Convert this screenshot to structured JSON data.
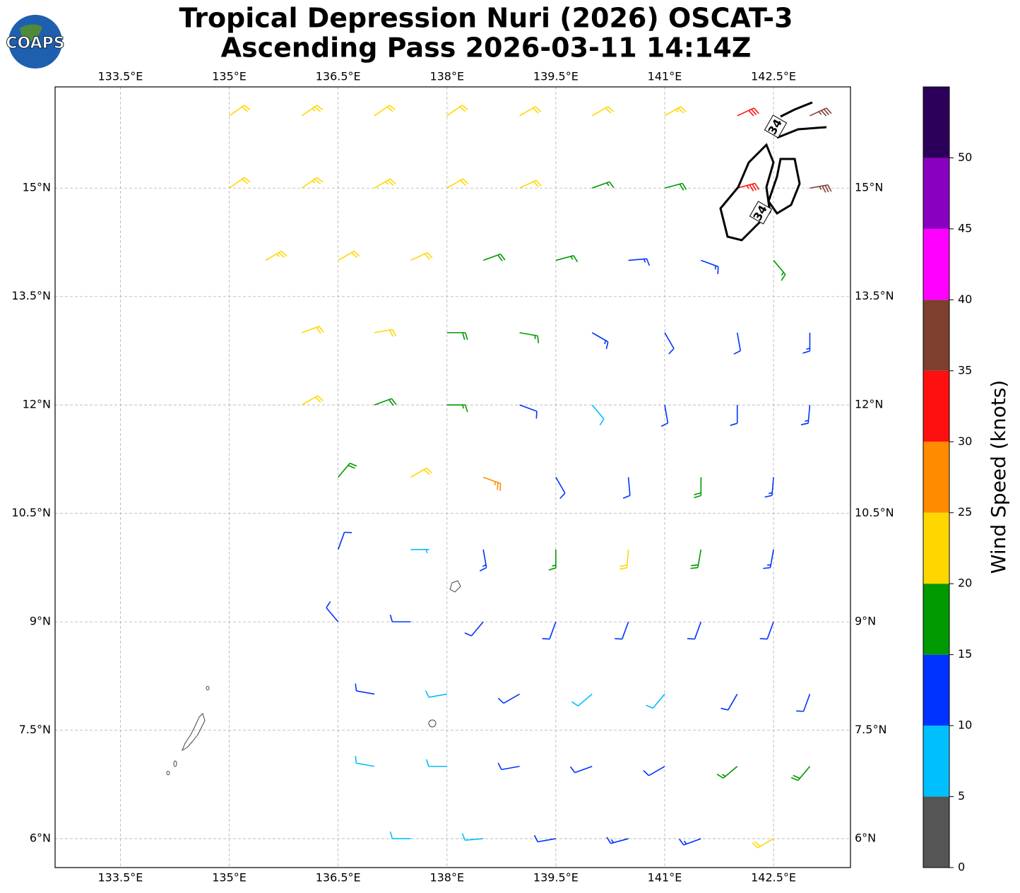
{
  "chart_data": {
    "type": "barbs",
    "title": "Tropical Depression Nuri (2026) OSCAT-3",
    "subtitle": "Ascending Pass 2026-03-11 14:14Z",
    "logo": "COAPS",
    "xlim": [
      132.6,
      143.56
    ],
    "ylim": [
      5.6,
      16.4
    ],
    "xticks": [
      {
        "value": 133.5,
        "label": "133.5°E"
      },
      {
        "value": 135,
        "label": "135°E"
      },
      {
        "value": 136.5,
        "label": "136.5°E"
      },
      {
        "value": 138,
        "label": "138°E"
      },
      {
        "value": 139.5,
        "label": "139.5°E"
      },
      {
        "value": 141,
        "label": "141°E"
      },
      {
        "value": 142.5,
        "label": "142.5°E"
      }
    ],
    "yticks": [
      {
        "value": 6,
        "label": "6°N"
      },
      {
        "value": 7.5,
        "label": "7.5°N"
      },
      {
        "value": 9,
        "label": "9°N"
      },
      {
        "value": 10.5,
        "label": "10.5°N"
      },
      {
        "value": 12,
        "label": "12°N"
      },
      {
        "value": 13.5,
        "label": "13.5°N"
      },
      {
        "value": 15,
        "label": "15°N"
      }
    ],
    "grid": true,
    "contour_label": "34",
    "colorbar": {
      "label": "Wind Speed (knots)",
      "lim": [
        0,
        55
      ],
      "ticks": [
        0,
        5,
        10,
        15,
        20,
        25,
        30,
        35,
        40,
        45,
        50
      ],
      "colors": [
        "#555555",
        "#00bfff",
        "#0033ff",
        "#009900",
        "#ffd700",
        "#ff8c00",
        "#ff1010",
        "#7f3f2f",
        "#ff00ff",
        "#8a00c0",
        "#2c005a"
      ]
    },
    "barbs": [
      {
        "lon": 135,
        "lat": 16,
        "speed": 22,
        "dir": 55
      },
      {
        "lon": 136,
        "lat": 16,
        "speed": 23,
        "dir": 55
      },
      {
        "lon": 137,
        "lat": 16,
        "speed": 22,
        "dir": 55
      },
      {
        "lon": 138,
        "lat": 16,
        "speed": 22,
        "dir": 55
      },
      {
        "lon": 139,
        "lat": 16,
        "speed": 21,
        "dir": 60
      },
      {
        "lon": 140,
        "lat": 16,
        "speed": 20,
        "dir": 60
      },
      {
        "lon": 141,
        "lat": 16,
        "speed": 24,
        "dir": 60
      },
      {
        "lon": 142,
        "lat": 16,
        "speed": 30,
        "dir": 65
      },
      {
        "lon": 143,
        "lat": 16,
        "speed": 36,
        "dir": 65
      },
      {
        "lon": 135,
        "lat": 15,
        "speed": 22,
        "dir": 55
      },
      {
        "lon": 136,
        "lat": 15,
        "speed": 23,
        "dir": 55
      },
      {
        "lon": 137,
        "lat": 15,
        "speed": 24,
        "dir": 60
      },
      {
        "lon": 138,
        "lat": 15,
        "speed": 22,
        "dir": 60
      },
      {
        "lon": 139,
        "lat": 15,
        "speed": 20,
        "dir": 65
      },
      {
        "lon": 140,
        "lat": 15,
        "speed": 16,
        "dir": 70
      },
      {
        "lon": 141,
        "lat": 15,
        "speed": 18,
        "dir": 75
      },
      {
        "lon": 142,
        "lat": 15,
        "speed": 34,
        "dir": 75
      },
      {
        "lon": 143,
        "lat": 15,
        "speed": 37,
        "dir": 80
      },
      {
        "lon": 135.5,
        "lat": 14,
        "speed": 24,
        "dir": 60
      },
      {
        "lon": 136.5,
        "lat": 14,
        "speed": 22,
        "dir": 60
      },
      {
        "lon": 137.5,
        "lat": 14,
        "speed": 21,
        "dir": 65
      },
      {
        "lon": 138.5,
        "lat": 14,
        "speed": 18,
        "dir": 70
      },
      {
        "lon": 139.5,
        "lat": 14,
        "speed": 16,
        "dir": 75
      },
      {
        "lon": 140.5,
        "lat": 14,
        "speed": 14,
        "dir": 85
      },
      {
        "lon": 141.5,
        "lat": 14,
        "speed": 13,
        "dir": 110
      },
      {
        "lon": 142.5,
        "lat": 14,
        "speed": 16,
        "dir": 140
      },
      {
        "lon": 136,
        "lat": 13,
        "speed": 22,
        "dir": 70
      },
      {
        "lon": 137,
        "lat": 13,
        "speed": 20,
        "dir": 80
      },
      {
        "lon": 138,
        "lat": 13,
        "speed": 18,
        "dir": 90
      },
      {
        "lon": 139,
        "lat": 13,
        "speed": 17,
        "dir": 100
      },
      {
        "lon": 140,
        "lat": 13,
        "speed": 14,
        "dir": 120
      },
      {
        "lon": 141,
        "lat": 13,
        "speed": 12,
        "dir": 150
      },
      {
        "lon": 142,
        "lat": 13,
        "speed": 12,
        "dir": 170
      },
      {
        "lon": 143,
        "lat": 13,
        "speed": 14,
        "dir": 180
      },
      {
        "lon": 136,
        "lat": 12,
        "speed": 20,
        "dir": 60
      },
      {
        "lon": 137,
        "lat": 12,
        "speed": 18,
        "dir": 70
      },
      {
        "lon": 138,
        "lat": 12,
        "speed": 16,
        "dir": 90
      },
      {
        "lon": 139,
        "lat": 12,
        "speed": 12,
        "dir": 110
      },
      {
        "lon": 140,
        "lat": 12,
        "speed": 8,
        "dir": 140
      },
      {
        "lon": 141,
        "lat": 12,
        "speed": 10,
        "dir": 170
      },
      {
        "lon": 142,
        "lat": 12,
        "speed": 12,
        "dir": 180
      },
      {
        "lon": 143,
        "lat": 12,
        "speed": 14,
        "dir": 185
      },
      {
        "lon": 136.5,
        "lat": 11,
        "speed": 18,
        "dir": 40
      },
      {
        "lon": 137.5,
        "lat": 11,
        "speed": 22,
        "dir": 60
      },
      {
        "lon": 138.5,
        "lat": 11,
        "speed": 26,
        "dir": 110
      },
      {
        "lon": 139.5,
        "lat": 11,
        "speed": 12,
        "dir": 150
      },
      {
        "lon": 140.5,
        "lat": 11,
        "speed": 12,
        "dir": 175
      },
      {
        "lon": 141.5,
        "lat": 11,
        "speed": 18,
        "dir": 180
      },
      {
        "lon": 142.5,
        "lat": 11,
        "speed": 14,
        "dir": 185
      },
      {
        "lon": 136.5,
        "lat": 10,
        "speed": 12,
        "dir": 20
      },
      {
        "lon": 137.5,
        "lat": 10,
        "speed": 6,
        "dir": 90
      },
      {
        "lon": 138.5,
        "lat": 10,
        "speed": 14,
        "dir": 170
      },
      {
        "lon": 139.5,
        "lat": 10,
        "speed": 16,
        "dir": 180
      },
      {
        "lon": 140.5,
        "lat": 10,
        "speed": 22,
        "dir": 185
      },
      {
        "lon": 141.5,
        "lat": 10,
        "speed": 18,
        "dir": 190
      },
      {
        "lon": 142.5,
        "lat": 10,
        "speed": 14,
        "dir": 190
      },
      {
        "lon": 136.5,
        "lat": 9,
        "speed": 12,
        "dir": 320
      },
      {
        "lon": 137.5,
        "lat": 9,
        "speed": 10,
        "dir": 270
      },
      {
        "lon": 138.5,
        "lat": 9,
        "speed": 11,
        "dir": 220
      },
      {
        "lon": 139.5,
        "lat": 9,
        "speed": 10,
        "dir": 200
      },
      {
        "lon": 140.5,
        "lat": 9,
        "speed": 12,
        "dir": 200
      },
      {
        "lon": 141.5,
        "lat": 9,
        "speed": 12,
        "dir": 200
      },
      {
        "lon": 142.5,
        "lat": 9,
        "speed": 11,
        "dir": 200
      },
      {
        "lon": 137,
        "lat": 8,
        "speed": 10,
        "dir": 280
      },
      {
        "lon": 138,
        "lat": 8,
        "speed": 9,
        "dir": 260
      },
      {
        "lon": 139,
        "lat": 8,
        "speed": 10,
        "dir": 240
      },
      {
        "lon": 140,
        "lat": 8,
        "speed": 8,
        "dir": 230
      },
      {
        "lon": 141,
        "lat": 8,
        "speed": 8,
        "dir": 220
      },
      {
        "lon": 142,
        "lat": 8,
        "speed": 10,
        "dir": 210
      },
      {
        "lon": 143,
        "lat": 8,
        "speed": 12,
        "dir": 200
      },
      {
        "lon": 137,
        "lat": 7,
        "speed": 8,
        "dir": 280
      },
      {
        "lon": 138,
        "lat": 7,
        "speed": 9,
        "dir": 270
      },
      {
        "lon": 139,
        "lat": 7,
        "speed": 11,
        "dir": 260
      },
      {
        "lon": 140,
        "lat": 7,
        "speed": 12,
        "dir": 250
      },
      {
        "lon": 141,
        "lat": 7,
        "speed": 12,
        "dir": 240
      },
      {
        "lon": 142,
        "lat": 7,
        "speed": 16,
        "dir": 230
      },
      {
        "lon": 143,
        "lat": 7,
        "speed": 18,
        "dir": 220
      },
      {
        "lon": 137.5,
        "lat": 6,
        "speed": 8,
        "dir": 270
      },
      {
        "lon": 138.5,
        "lat": 6,
        "speed": 9,
        "dir": 265
      },
      {
        "lon": 139.5,
        "lat": 6,
        "speed": 12,
        "dir": 260
      },
      {
        "lon": 140.5,
        "lat": 6,
        "speed": 14,
        "dir": 255
      },
      {
        "lon": 141.5,
        "lat": 6,
        "speed": 14,
        "dir": 250
      },
      {
        "lon": 142.5,
        "lat": 6,
        "speed": 20,
        "dir": 240
      }
    ]
  }
}
